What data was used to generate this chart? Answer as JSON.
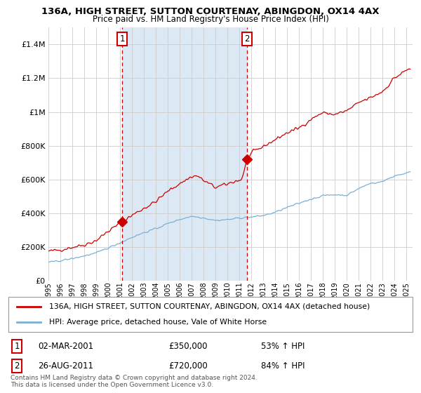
{
  "title1": "136A, HIGH STREET, SUTTON COURTENAY, ABINGDON, OX14 4AX",
  "title2": "Price paid vs. HM Land Registry's House Price Index (HPI)",
  "legend1": "136A, HIGH STREET, SUTTON COURTENAY, ABINGDON, OX14 4AX (detached house)",
  "legend2": "HPI: Average price, detached house, Vale of White Horse",
  "marker1_date": 2001.17,
  "marker1_value": 350000,
  "marker1_label": "1",
  "marker1_text": "02-MAR-2001",
  "marker1_price": "£350,000",
  "marker1_hpi": "53% ↑ HPI",
  "marker2_date": 2011.65,
  "marker2_value": 720000,
  "marker2_label": "2",
  "marker2_text": "26-AUG-2011",
  "marker2_price": "£720,000",
  "marker2_hpi": "84% ↑ HPI",
  "xmin": 1995.0,
  "xmax": 2025.5,
  "ymin": 0,
  "ymax": 1500000,
  "red_color": "#cc0000",
  "blue_color": "#7ab0d4",
  "shade_color": "#dce9f5",
  "grid_color": "#cccccc",
  "background_color": "#ffffff",
  "footnote": "Contains HM Land Registry data © Crown copyright and database right 2024.\nThis data is licensed under the Open Government Licence v3.0."
}
